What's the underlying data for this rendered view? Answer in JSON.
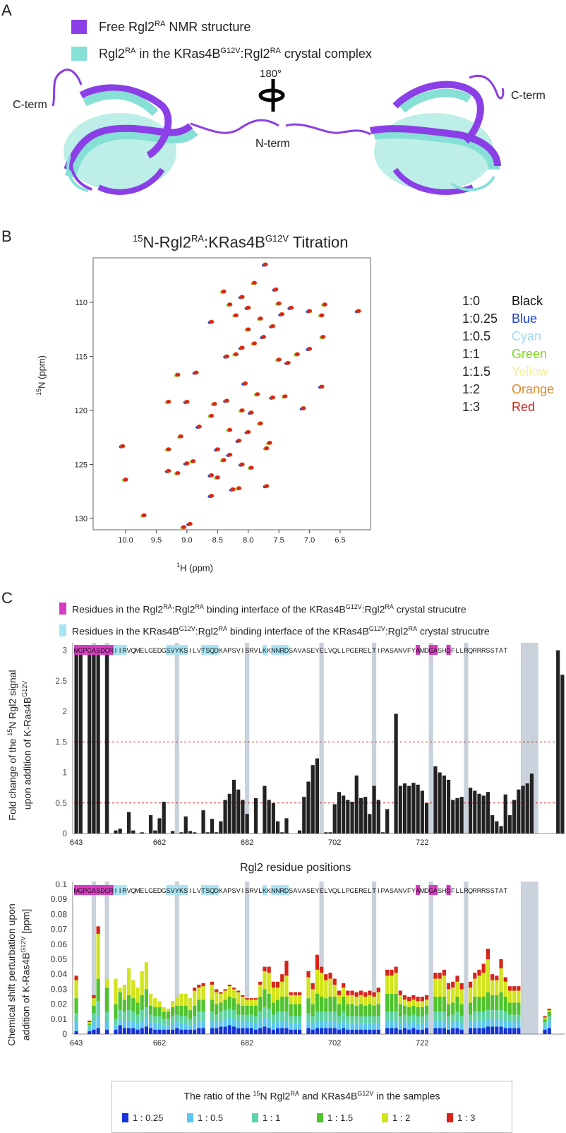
{
  "panelA": {
    "label": "A",
    "legend": [
      {
        "prefix": "Free Rgl2",
        "sup1": "RA",
        "suffix": " NMR structure",
        "color": "#8B3FE6"
      },
      {
        "prefix": "Rgl2",
        "sup1": "RA",
        "mid": " in the KRas4B",
        "sup2": "G12V",
        "mid2": ":Rgl2",
        "sup3": "RA",
        "suffix": " crystal complex",
        "color": "#86E0D6"
      }
    ],
    "rotation": "180°",
    "cterm_left": "C-term",
    "cterm_right": "C-term",
    "nterm": "N-term"
  },
  "panelB": {
    "label": "B",
    "title_pre": "15",
    "title_a": "N-Rgl2",
    "title_sup1": "RA",
    "title_b": ":KRas4B",
    "title_sup2": "G12V",
    "title_c": " Titration",
    "xlabel_sup": "1",
    "xlabel": "H (ppm)",
    "ylabel_sup": "15",
    "ylabel": "N (ppm)",
    "xticks": [
      "10.0",
      "9.5",
      "9.0",
      "8.5",
      "8.0",
      "7.5",
      "7.0",
      "6.5"
    ],
    "yticks": [
      "110",
      "115",
      "120",
      "125",
      "130"
    ],
    "ratios": [
      {
        "ratio": "1:0",
        "name": "Black",
        "color": "#111111"
      },
      {
        "ratio": "1:0.25",
        "name": "Blue",
        "color": "#1A3FD0"
      },
      {
        "ratio": "1:0.5",
        "name": "Cyan",
        "color": "#9ED8F0"
      },
      {
        "ratio": "1:1",
        "name": "Green",
        "color": "#7FD81E"
      },
      {
        "ratio": "1:1.5",
        "name": "Yellow",
        "color": "#F4EE9A"
      },
      {
        "ratio": "1:2",
        "name": "Orange",
        "color": "#D98A2B"
      },
      {
        "ratio": "1:3",
        "name": "Red",
        "color": "#D8241A"
      }
    ]
  },
  "panelC": {
    "label": "C",
    "legend1_a": "Residues in the Rgl2",
    "legend1_s1": "RA",
    "legend1_b": ":Rgl2",
    "legend1_s2": "RA",
    "legend1_c": " binding interface of the KRas4B",
    "legend1_s3": "G12V",
    "legend1_d": ":Rgl2",
    "legend1_s4": "RA",
    "legend1_e": " crystal strucutre",
    "legend2_a": "Residues in the KRas4B",
    "legend2_s1": "G12V",
    "legend2_b": ":Rgl2",
    "legend2_s2": "RA",
    "legend2_c": " binding interface of the KRas4B",
    "legend2_s3": "G12V",
    "legend2_d": ":Rgl2",
    "legend2_s4": "RA",
    "legend2_e": " crystal strucutre",
    "sequence": "MGPGASDCRIIRVQMELGEDGSVYKSILVTSQDKAPSVISRVLKKNNRDSAVASEYELVQLLPGERELTIPASANVFYAMDGASHDFLLRQRRRSSTAT",
    "pink_color": "#D63BC0",
    "cyan_color": "#A8E4F4",
    "xticks": [
      "643",
      "662",
      "682",
      "702",
      "722"
    ],
    "xlabel": "Rgl2 residue positions",
    "ylabel1_a": "Fold change of the ",
    "ylabel1_s": "15",
    "ylabel1_b": "N Rgl2 signal",
    "ylabel1_c": "upon addition of K-Ras4B",
    "ylabel1_s2": "G12V",
    "yticks1": [
      "0",
      "0.5",
      "1",
      "1.5",
      "2",
      "2.5",
      "3"
    ],
    "ylabel2_a": "Chemical shift perturbation upon",
    "ylabel2_b": "addition of K-Ras4B",
    "ylabel2_s": "G12V",
    "ylabel2_c": " [ppm]",
    "yticks2": [
      "0",
      "0.01",
      "0.02",
      "0.03",
      "0.04",
      "0.05",
      "0.06",
      "0.07",
      "0.08",
      "0.09",
      "0.1"
    ],
    "ratio_title_a": "The ratio of the ",
    "ratio_title_s1": "15",
    "ratio_title_b": "N Rgl2",
    "ratio_title_s2": "RA",
    "ratio_title_c": " and KRas4B",
    "ratio_title_s3": "G12V",
    "ratio_title_d": " in the samples",
    "ratio_legend": [
      {
        "label": "1 : 0.25",
        "color": "#1632D8"
      },
      {
        "label": "1 : 0.5",
        "color": "#5CC6EE"
      },
      {
        "label": "1 : 1",
        "color": "#5ED3A3"
      },
      {
        "label": "1 : 1.5",
        "color": "#4FC22E"
      },
      {
        "label": "1 : 2",
        "color": "#D2E41C"
      },
      {
        "label": "1 : 3",
        "color": "#D8241A"
      }
    ]
  },
  "chart_data": [
    {
      "type": "bar",
      "ylabel": "Fold change of the 15N Rgl2 signal upon addition of K-Ras4BG12V",
      "xlabel": "Rgl2 residue positions",
      "ylim": [
        0,
        3.1
      ],
      "x_start": 643,
      "reference_lines": [
        0.5,
        1.5
      ],
      "values": [
        3.0,
        3.0,
        0,
        3.0,
        3.0,
        3.0,
        0,
        3.0,
        0,
        0.05,
        0.08,
        0,
        0.35,
        0.05,
        0,
        0.02,
        0,
        0.3,
        0.05,
        0.25,
        0.52,
        0,
        0.04,
        0,
        0.02,
        0.28,
        0.04,
        0.02,
        0,
        0.38,
        0.02,
        0.24,
        0.02,
        0.2,
        0.55,
        0.65,
        0.88,
        0.72,
        0.55,
        0.32,
        0,
        0.58,
        0,
        0.78,
        0.55,
        0.5,
        0.2,
        0.02,
        0.25,
        0,
        0,
        0.05,
        0.6,
        0.85,
        1.12,
        1.23,
        0,
        0.02,
        0.02,
        0.48,
        0.68,
        0.62,
        0.55,
        0.52,
        0.95,
        0.58,
        0.6,
        0.32,
        0.78,
        0.55,
        0.02,
        0.4,
        0,
        1.96,
        0.78,
        0.82,
        0.78,
        0.83,
        0.8,
        0.7,
        0.5,
        0,
        1.1,
        1.0,
        0.95,
        0.88,
        0.55,
        0.58,
        0.6,
        0,
        0.75,
        0.7,
        0.65,
        0.62,
        0.68,
        0.3,
        0.2,
        0.12,
        0.64,
        0.3,
        0.55,
        0.72,
        0.78,
        0.82,
        0.98,
        0,
        0,
        0,
        0,
        0,
        3.0,
        2.6
      ],
      "excluded_regions": [
        4,
        7,
        23,
        39,
        56,
        68,
        81,
        89,
        102,
        103,
        104,
        105
      ]
    },
    {
      "type": "bar",
      "stacked": true,
      "ylabel": "Chemical shift perturbation upon addition of K-Ras4BG12V [ppm]",
      "ylim": [
        0,
        0.1
      ],
      "x_start": 643,
      "series": [
        {
          "name": "1 : 0.25",
          "values": [
            0.002,
            0,
            0,
            0.002,
            0.003,
            0.004,
            0,
            0.003,
            0,
            0.003,
            0.006,
            0.004,
            0.004,
            0.004,
            0.003,
            0.004,
            0.005,
            0.004,
            0.003,
            0.003,
            0.003,
            0.003,
            0.003,
            0.004,
            0.003,
            0.003,
            0.003,
            0.003,
            0.004,
            0.004,
            0,
            0.004,
            0.004,
            0.005,
            0.005,
            0.006,
            0.005,
            0.004,
            0.004,
            0.004,
            0.004,
            0.003,
            0.004,
            0.005,
            0.004,
            0.003,
            0.004,
            0.004,
            0.004,
            0.003,
            0.003,
            0.003,
            0,
            0.004,
            0.003,
            0.004,
            0.004,
            0.004,
            0.004,
            0.004,
            0.003,
            0.004,
            0.003,
            0.003,
            0.003,
            0.003,
            0.003,
            0.003,
            0.003,
            0.003,
            0,
            0.004,
            0.004,
            0.004,
            0.003,
            0.004,
            0.003,
            0.004,
            0.003,
            0.003,
            0.004,
            0,
            0.004,
            0.004,
            0.004,
            0.003,
            0.004,
            0.004,
            0.003,
            0,
            0.004,
            0.004,
            0.004,
            0.004,
            0.005,
            0.005,
            0.005,
            0.005,
            0.004,
            0.004,
            0.004,
            0.004,
            0,
            0,
            0,
            0,
            0,
            0.003,
            0.004
          ]
        },
        {
          "name": "1 : 0.5",
          "values": [
            0.006,
            0,
            0,
            0.002,
            0.006,
            0.008,
            0,
            0.005,
            0,
            0.003,
            0.004,
            0.005,
            0.005,
            0.005,
            0.004,
            0.005,
            0.006,
            0.004,
            0.004,
            0.004,
            0.003,
            0.003,
            0.004,
            0.004,
            0.004,
            0.004,
            0.003,
            0.004,
            0.005,
            0.005,
            0,
            0.005,
            0.004,
            0.004,
            0.005,
            0.005,
            0.005,
            0.004,
            0.004,
            0.004,
            0.004,
            0.004,
            0.005,
            0.006,
            0.006,
            0.004,
            0.005,
            0.005,
            0.005,
            0.004,
            0.004,
            0.004,
            0,
            0.004,
            0.004,
            0.005,
            0.005,
            0.005,
            0.005,
            0.005,
            0.004,
            0.005,
            0.004,
            0.004,
            0.004,
            0.004,
            0.004,
            0.004,
            0.004,
            0.004,
            0,
            0.005,
            0.005,
            0.005,
            0.004,
            0.004,
            0.004,
            0.004,
            0.004,
            0.004,
            0.004,
            0,
            0.005,
            0.005,
            0.005,
            0.004,
            0.004,
            0.005,
            0.004,
            0,
            0.004,
            0.005,
            0.005,
            0.005,
            0.005,
            0.005,
            0.005,
            0.005,
            0.005,
            0.004,
            0.004,
            0.004,
            0,
            0,
            0,
            0,
            0,
            0.003,
            0.005
          ]
        },
        {
          "name": "1 : 1",
          "values": [
            0.006,
            0,
            0,
            0.002,
            0.005,
            0.01,
            0,
            0.007,
            0,
            0.004,
            0.006,
            0.006,
            0.007,
            0.006,
            0.006,
            0.007,
            0.007,
            0.005,
            0.005,
            0.005,
            0.004,
            0.004,
            0.005,
            0.005,
            0.005,
            0.005,
            0.004,
            0.005,
            0.006,
            0.006,
            0,
            0.006,
            0.005,
            0.006,
            0.006,
            0.006,
            0.006,
            0.005,
            0.005,
            0.005,
            0.005,
            0.005,
            0.006,
            0.007,
            0.007,
            0.006,
            0.006,
            0.006,
            0.006,
            0.005,
            0.005,
            0.005,
            0,
            0.006,
            0.005,
            0.006,
            0.006,
            0.006,
            0.006,
            0.006,
            0.005,
            0.006,
            0.005,
            0.005,
            0.005,
            0.005,
            0.005,
            0.005,
            0.005,
            0.005,
            0,
            0.006,
            0.006,
            0.006,
            0.005,
            0.005,
            0.005,
            0.005,
            0.005,
            0.005,
            0.005,
            0,
            0.006,
            0.006,
            0.006,
            0.005,
            0.005,
            0.006,
            0.005,
            0,
            0.005,
            0.006,
            0.006,
            0.006,
            0.006,
            0.006,
            0.006,
            0.006,
            0.006,
            0.005,
            0.005,
            0.005,
            0,
            0,
            0,
            0,
            0,
            0.002,
            0.003
          ]
        },
        {
          "name": "1 : 1.5",
          "values": [
            0.01,
            0,
            0,
            0.001,
            0.005,
            0.015,
            0,
            0.016,
            0,
            0.01,
            0.012,
            0.008,
            0.01,
            0.009,
            0.008,
            0.01,
            0.012,
            0.006,
            0.006,
            0.006,
            0.005,
            0.005,
            0.006,
            0.006,
            0.007,
            0.007,
            0.006,
            0.007,
            0.008,
            0.008,
            0,
            0.008,
            0.007,
            0.006,
            0.007,
            0.008,
            0.008,
            0.007,
            0.006,
            0.006,
            0.006,
            0.007,
            0.01,
            0.012,
            0.01,
            0.008,
            0.008,
            0.01,
            0.01,
            0.008,
            0.008,
            0.008,
            0,
            0.01,
            0.008,
            0.012,
            0.01,
            0.009,
            0.01,
            0.01,
            0.008,
            0.01,
            0.008,
            0.008,
            0.007,
            0.008,
            0.007,
            0.008,
            0.007,
            0.008,
            0,
            0.012,
            0.012,
            0.012,
            0.008,
            0.006,
            0.006,
            0.006,
            0.006,
            0.006,
            0.006,
            0,
            0.01,
            0.01,
            0.01,
            0.008,
            0.008,
            0.01,
            0.008,
            0,
            0.008,
            0.01,
            0.01,
            0.01,
            0.012,
            0.01,
            0.01,
            0.012,
            0.01,
            0.008,
            0.008,
            0.008,
            0,
            0,
            0,
            0,
            0,
            0.002,
            0.003
          ]
        },
        {
          "name": "1 : 2",
          "values": [
            0.012,
            0,
            0,
            0.001,
            0.005,
            0.03,
            0,
            0.006,
            0,
            0.017,
            0.003,
            0.01,
            0.018,
            0.012,
            0.01,
            0.016,
            0.018,
            0.008,
            0.006,
            0.004,
            0.003,
            0.002,
            0.004,
            0.006,
            0.008,
            0.008,
            0.008,
            0.01,
            0.008,
            0.009,
            0,
            0.01,
            0.008,
            0.006,
            0.006,
            0.007,
            0.006,
            0.008,
            0.006,
            0.004,
            0.004,
            0.004,
            0.008,
            0.012,
            0.014,
            0.01,
            0.008,
            0.01,
            0.014,
            0.006,
            0.006,
            0.006,
            0,
            0.014,
            0.01,
            0.016,
            0.016,
            0.012,
            0.012,
            0.008,
            0.006,
            0.006,
            0.006,
            0.006,
            0.006,
            0.006,
            0.006,
            0.006,
            0.006,
            0.008,
            0,
            0.012,
            0.012,
            0.014,
            0.006,
            0.004,
            0.004,
            0.004,
            0.004,
            0.004,
            0.004,
            0,
            0.012,
            0.012,
            0.014,
            0.01,
            0.01,
            0.01,
            0.01,
            0,
            0.01,
            0.012,
            0.014,
            0.016,
            0.022,
            0.01,
            0.01,
            0.016,
            0.01,
            0.008,
            0.008,
            0.008,
            0,
            0,
            0,
            0,
            0,
            0.001,
            0.001
          ]
        },
        {
          "name": "1 : 3",
          "values": [
            0.003,
            0,
            0,
            0.001,
            0.002,
            0.005,
            0,
            0,
            0,
            0,
            0,
            0,
            0,
            0,
            0,
            0,
            0,
            0,
            0,
            0,
            0,
            0,
            0,
            0,
            0,
            0,
            0,
            0.002,
            0.002,
            0.002,
            0,
            0.002,
            0.002,
            0.001,
            0.001,
            0.001,
            0.001,
            0.001,
            0.001,
            0.001,
            0.001,
            0.001,
            0.002,
            0.003,
            0.004,
            0.004,
            0.004,
            0.005,
            0.01,
            0.002,
            0.002,
            0.002,
            0,
            0.004,
            0.004,
            0.01,
            0.004,
            0.004,
            0.004,
            0.004,
            0.003,
            0.003,
            0.003,
            0.003,
            0.003,
            0.003,
            0.003,
            0.003,
            0.003,
            0.003,
            0,
            0.004,
            0.004,
            0.004,
            0.003,
            0.003,
            0.003,
            0.003,
            0.003,
            0.003,
            0.003,
            0,
            0.004,
            0.004,
            0.004,
            0.004,
            0.004,
            0.004,
            0.004,
            0,
            0.004,
            0.004,
            0.004,
            0.006,
            0.007,
            0.004,
            0.003,
            0.006,
            0.003,
            0.003,
            0.003,
            0.003,
            0,
            0,
            0,
            0,
            0,
            0.001,
            0.001
          ]
        }
      ]
    }
  ]
}
